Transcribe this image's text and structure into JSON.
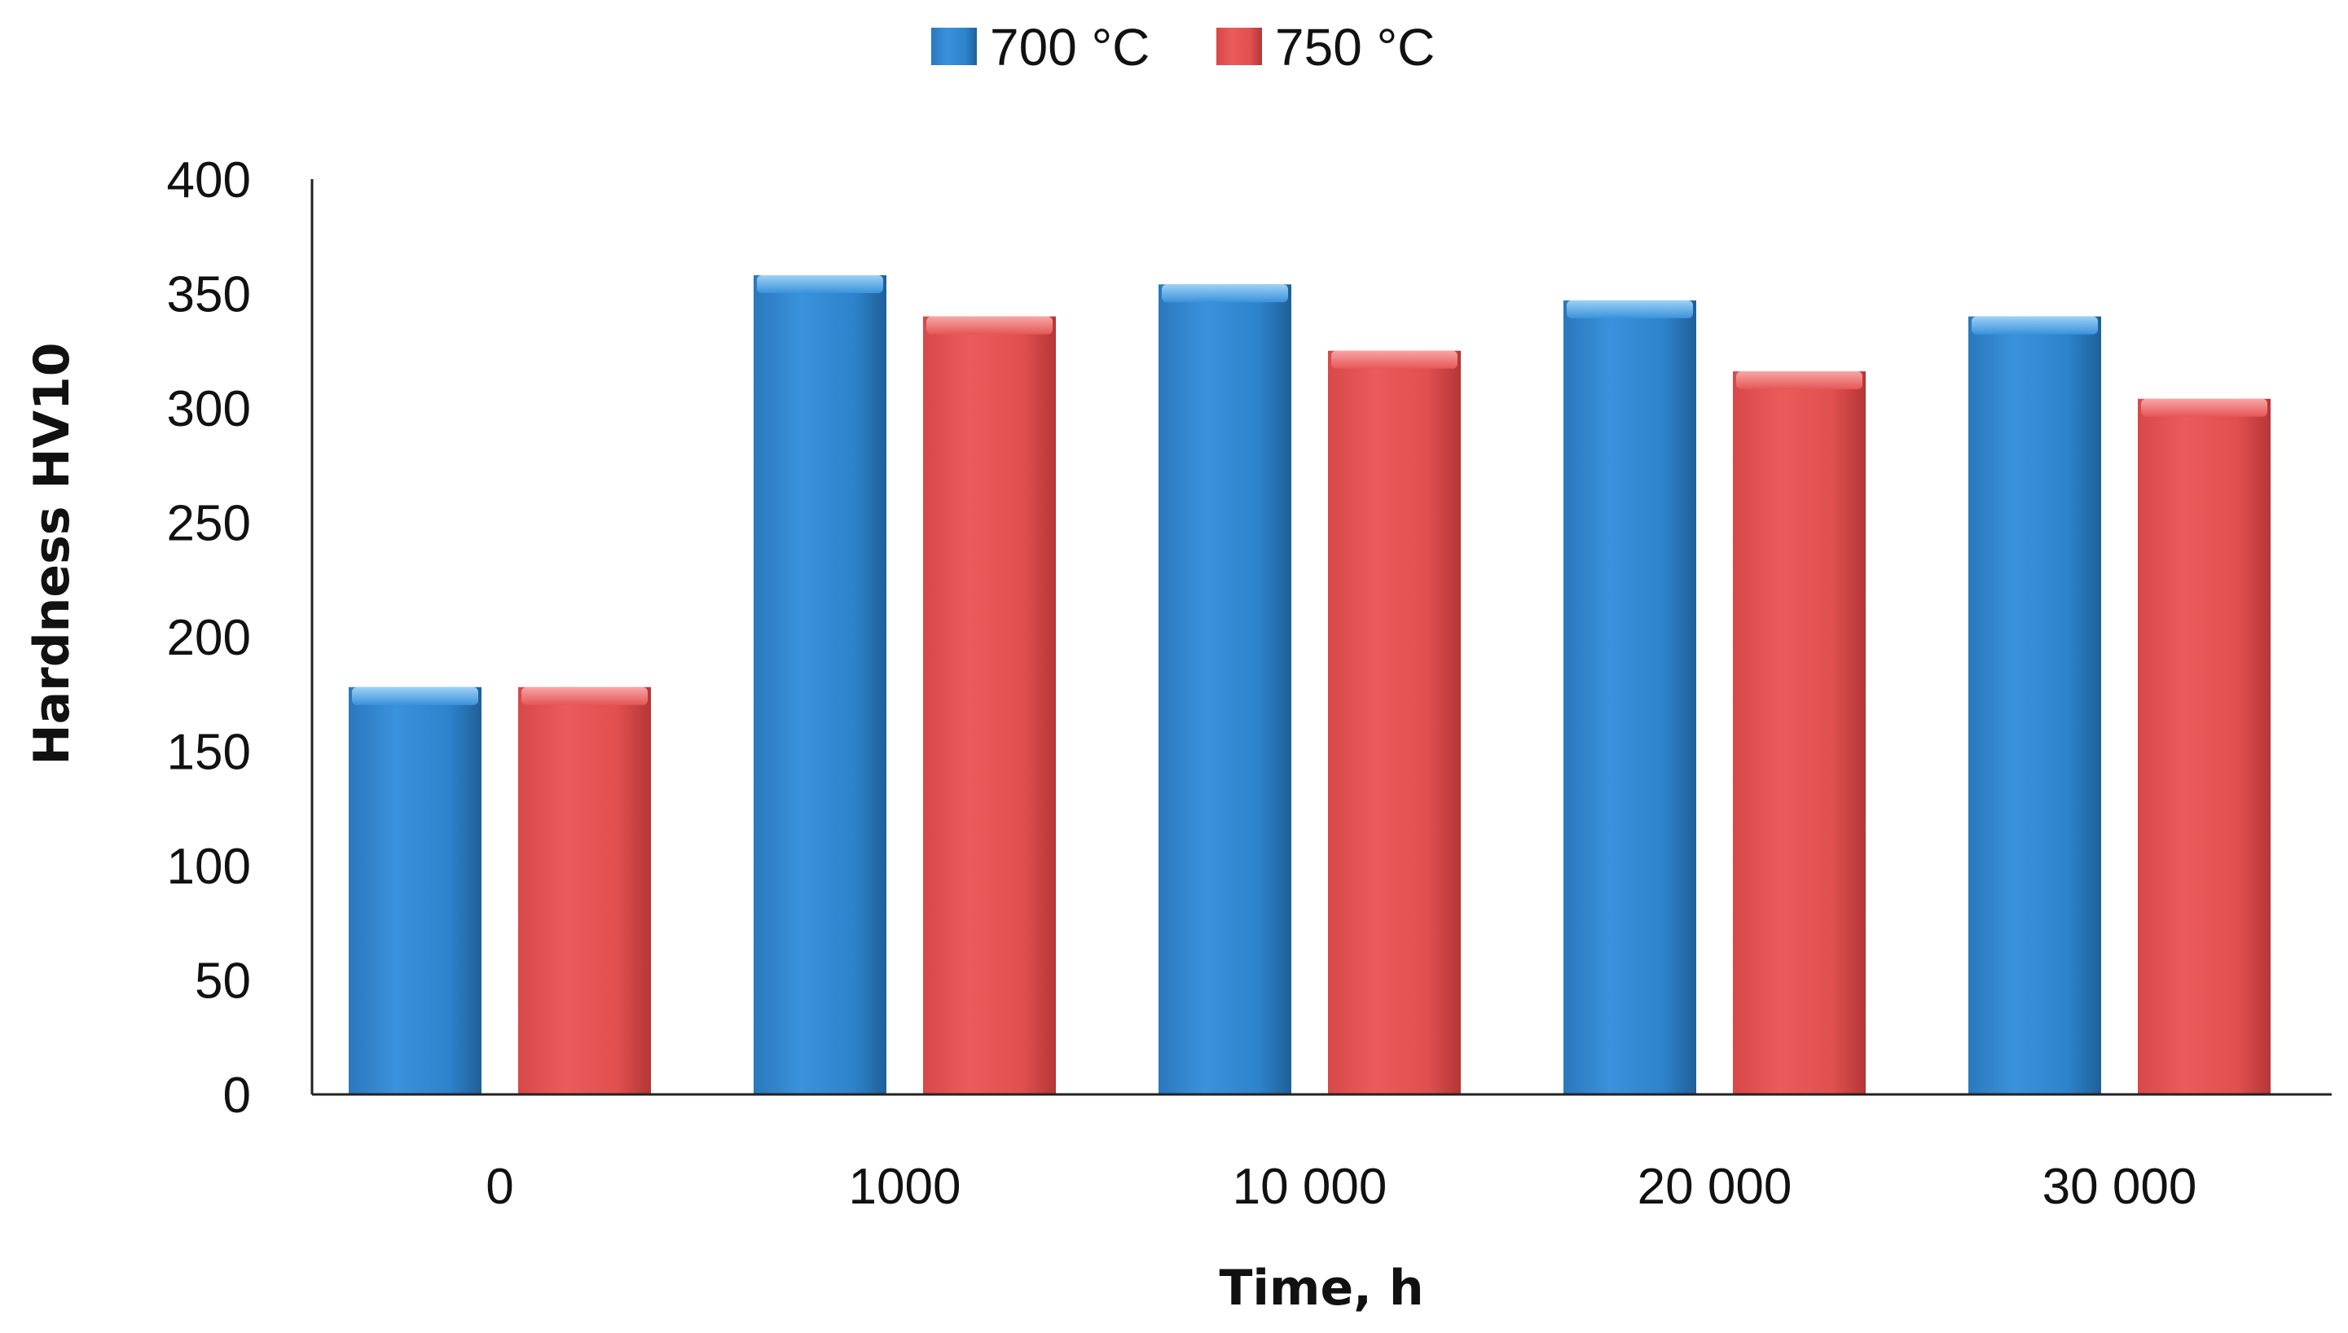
{
  "chart_data": {
    "type": "bar",
    "title": "",
    "xlabel": "Time, h",
    "ylabel": "Hardness HV10",
    "categories": [
      "0",
      "1000",
      "10 000",
      "20 000",
      "30 000"
    ],
    "yticks": [
      "0",
      "50",
      "100",
      "150",
      "200",
      "250",
      "300",
      "350",
      "400"
    ],
    "ylim": [
      0,
      400
    ],
    "grid": false,
    "legend_position": "top-center",
    "series": [
      {
        "name": "700 °C",
        "color": "#2f86cf",
        "values": [
          178,
          358,
          354,
          347,
          340
        ]
      },
      {
        "name": "750 °C",
        "color": "#e04f4f",
        "values": [
          178,
          340,
          325,
          316,
          304
        ]
      }
    ]
  }
}
